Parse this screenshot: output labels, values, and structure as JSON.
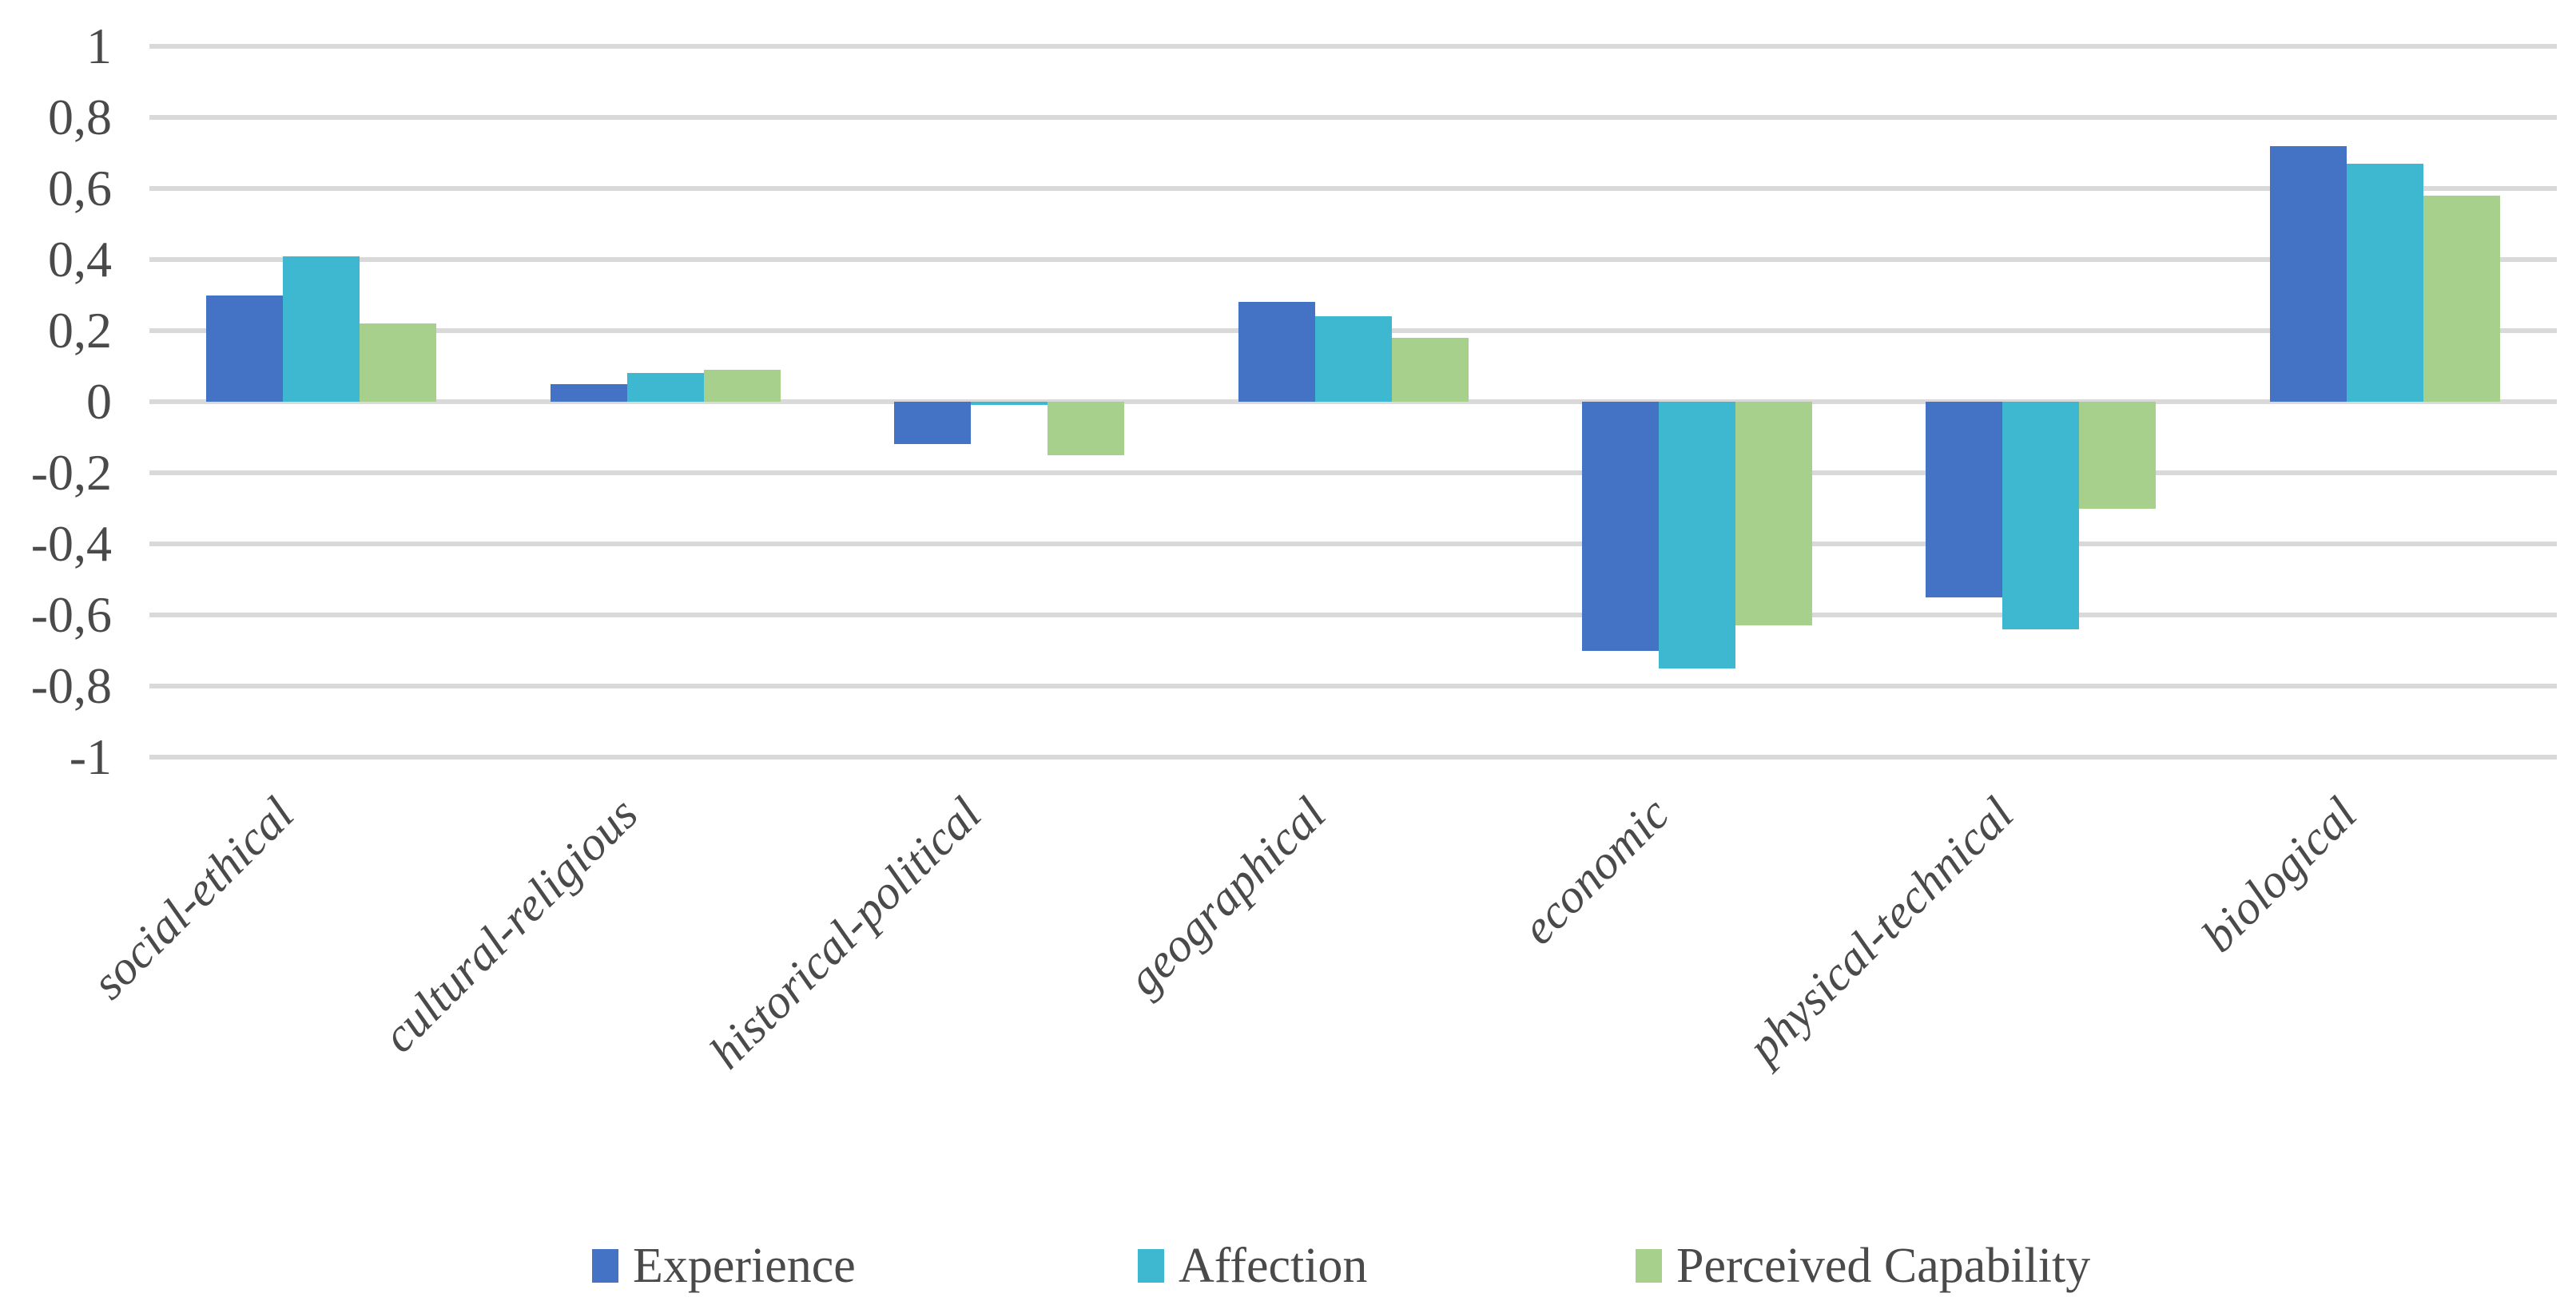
{
  "chart_data": {
    "type": "bar",
    "title": "",
    "xlabel": "",
    "ylabel": "",
    "categories": [
      "social-ethical",
      "cultural-religious",
      "historical-political",
      "geographical",
      "economic",
      "physical-technical",
      "biological"
    ],
    "series": [
      {
        "name": "Experience",
        "color": "#4472C4",
        "values": [
          0.3,
          0.05,
          -0.12,
          0.28,
          -0.7,
          -0.55,
          0.72
        ]
      },
      {
        "name": "Affection",
        "color": "#3EB8D1",
        "values": [
          0.41,
          0.08,
          -0.01,
          0.24,
          -0.75,
          -0.64,
          0.67
        ]
      },
      {
        "name": "Perceived Capability",
        "color": "#A6D08C",
        "values": [
          0.22,
          0.09,
          -0.15,
          0.18,
          -0.63,
          -0.3,
          0.58
        ]
      }
    ],
    "ylim": [
      -1,
      1
    ],
    "ytick_values": [
      1,
      0.8,
      0.6,
      0.4,
      0.2,
      0,
      -0.2,
      -0.4,
      -0.6,
      -0.8,
      -1
    ],
    "ytick_labels": [
      "1",
      "0,8",
      "0,6",
      "0,4",
      "0,2",
      "0",
      "-0,2",
      "-0,4",
      "-0,6",
      "-0,8",
      "-1"
    ],
    "decimal_separator": ",",
    "grid": true,
    "gridline_color": "#D9D9D9",
    "text_color": "#4a4a4a",
    "background_color": "#FFFFFF",
    "legend_position": "bottom",
    "category_label_rotation_deg": -45
  }
}
